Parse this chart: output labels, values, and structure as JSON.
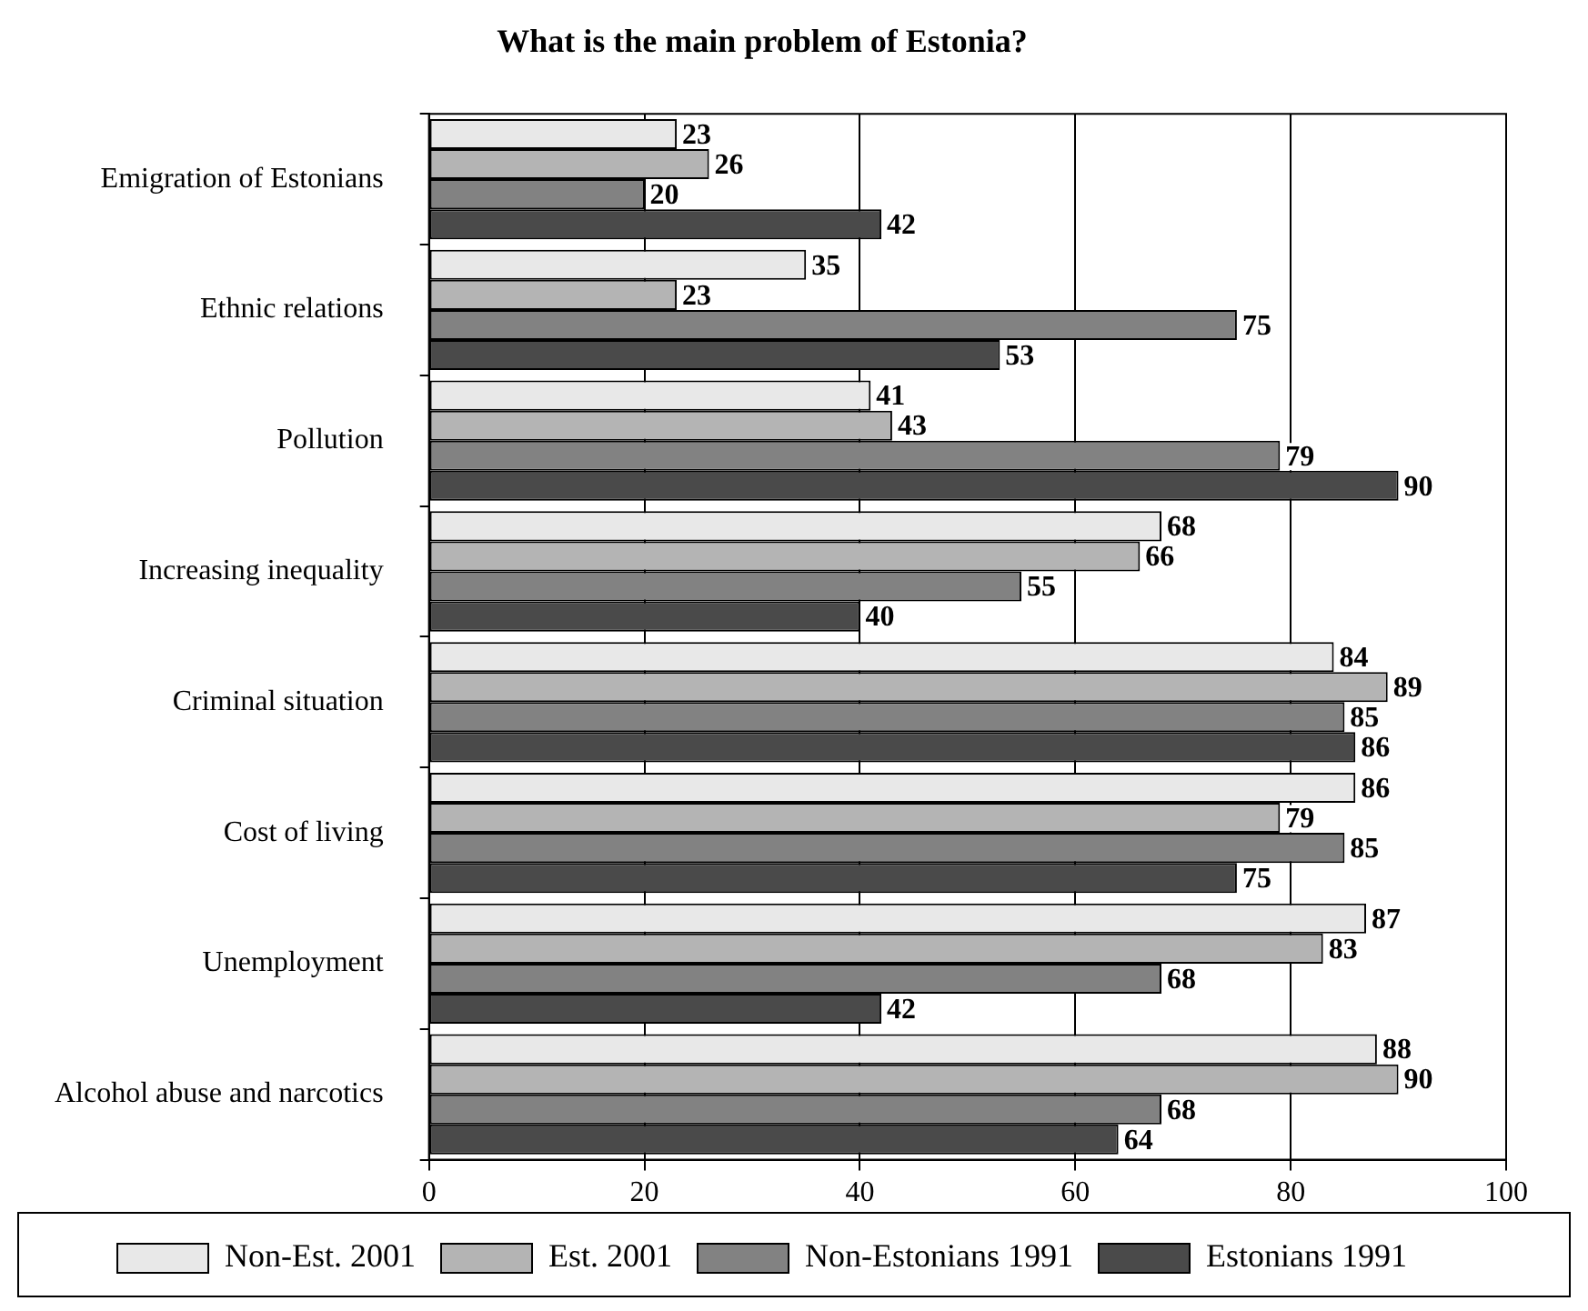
{
  "chart_data": {
    "type": "bar",
    "orientation": "horizontal",
    "title": "What is the main problem of Estonia?",
    "categories": [
      "Emigration of Estonians",
      "Ethnic relations",
      "Pollution",
      "Increasing inequality",
      "Criminal situation",
      "Cost of living",
      "Unemployment",
      "Alcohol abuse and narcotics"
    ],
    "series": [
      {
        "name": "Non-Est. 2001",
        "color": "#e8e8e8",
        "values": [
          23,
          35,
          41,
          68,
          84,
          86,
          87,
          88
        ]
      },
      {
        "name": "Est. 2001",
        "color": "#b4b4b4",
        "values": [
          26,
          23,
          43,
          66,
          89,
          79,
          83,
          90
        ]
      },
      {
        "name": "Non-Estonians 1991",
        "color": "#828282",
        "values": [
          20,
          75,
          79,
          55,
          85,
          85,
          68,
          68
        ]
      },
      {
        "name": "Estonians 1991",
        "color": "#4a4a4a",
        "values": [
          42,
          53,
          90,
          40,
          86,
          75,
          42,
          64
        ]
      }
    ],
    "xlim": [
      0,
      100
    ],
    "xticks": [
      0,
      20,
      40,
      60,
      80,
      100
    ],
    "grid": "x",
    "legend": "bottom",
    "data_labels": true
  }
}
